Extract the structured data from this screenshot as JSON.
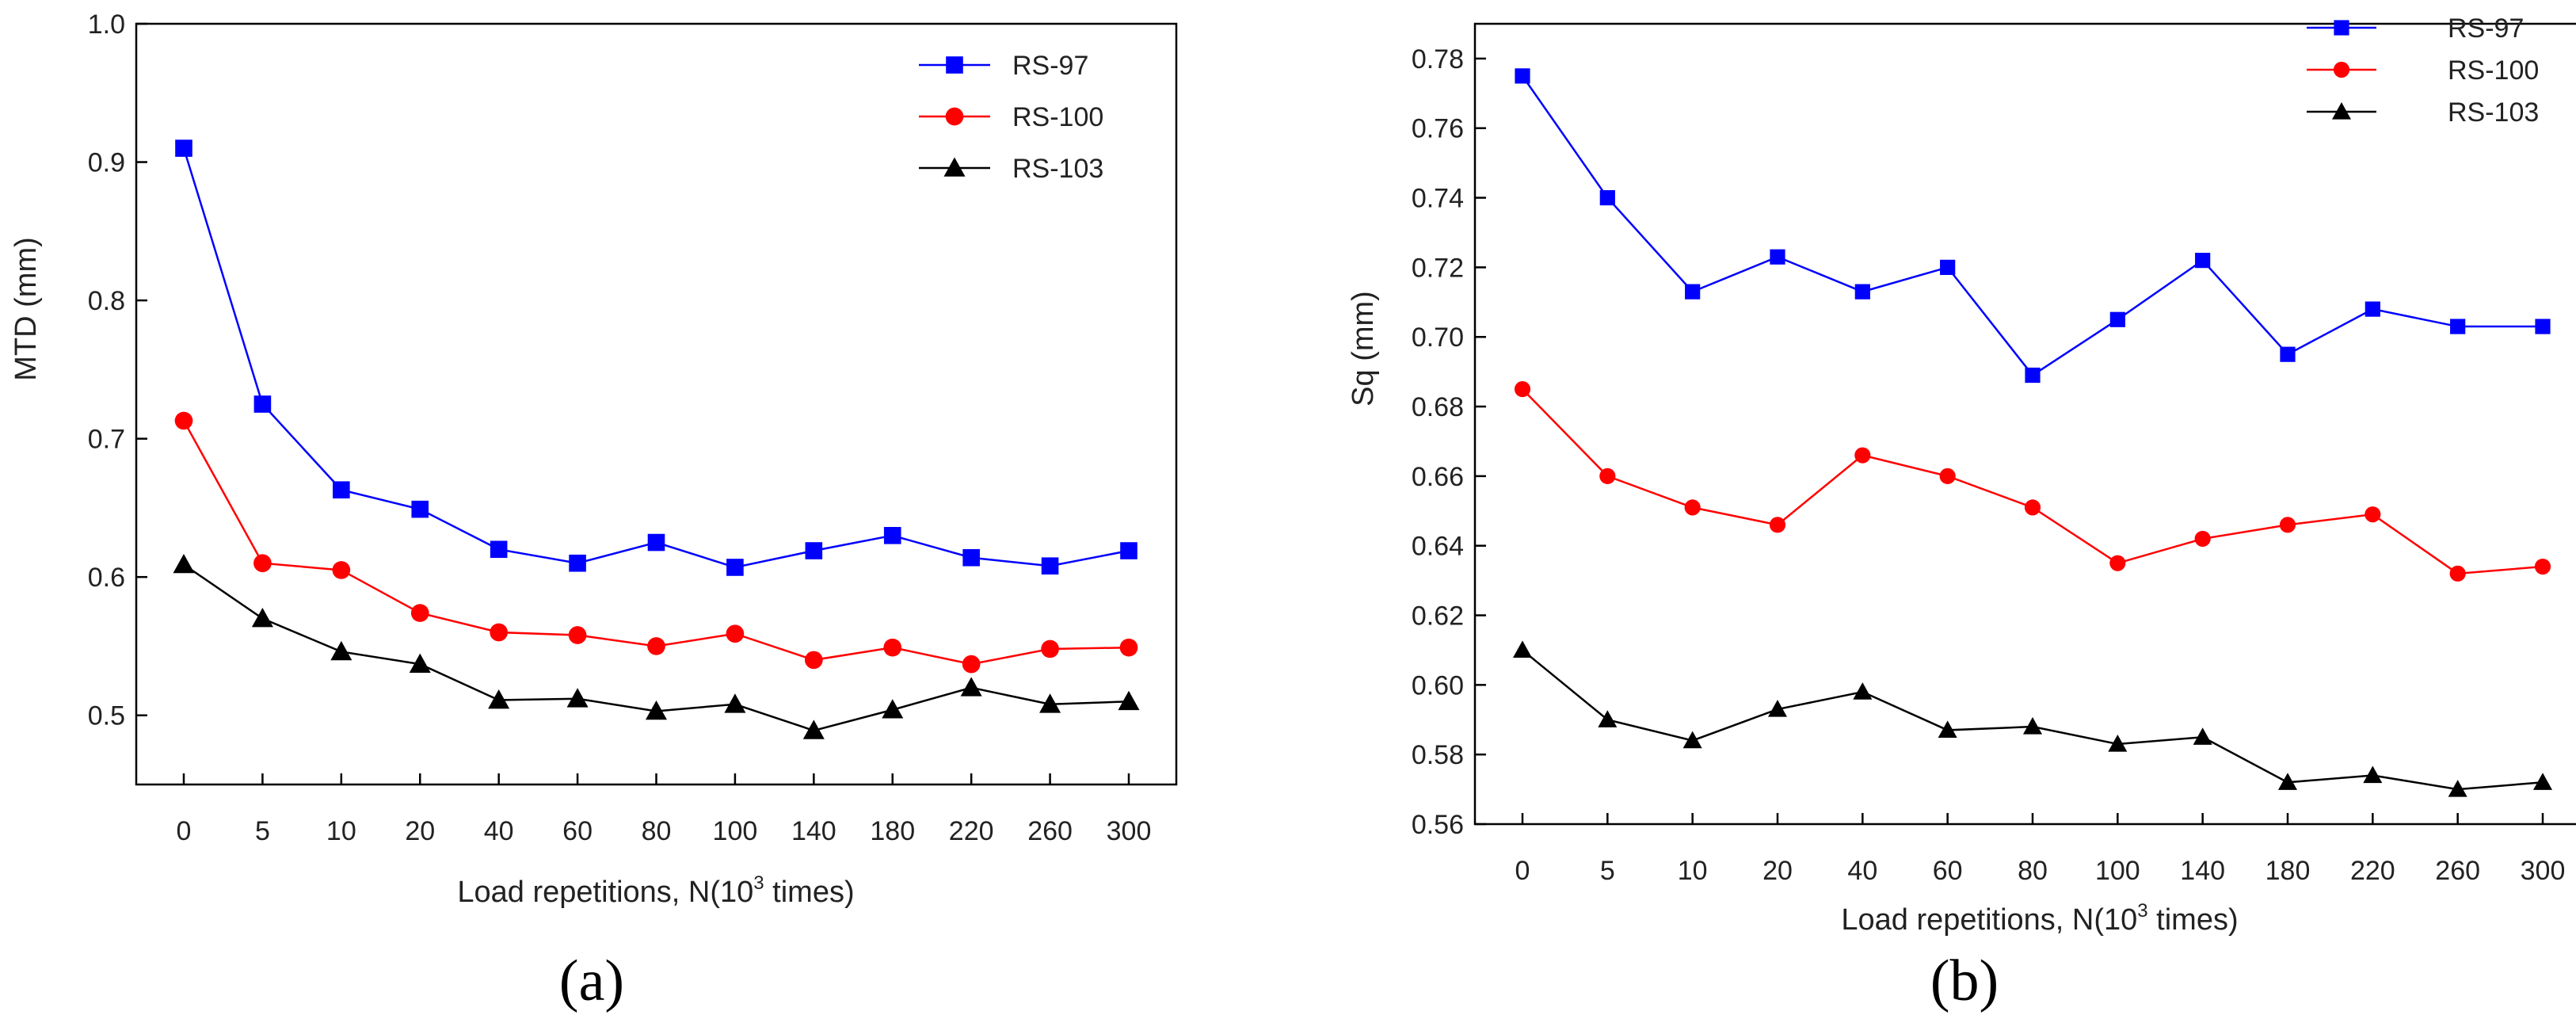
{
  "chart_data": [
    {
      "type": "line",
      "panel_label": "(a)",
      "categories": [
        "0",
        "5",
        "10",
        "20",
        "40",
        "60",
        "80",
        "100",
        "140",
        "180",
        "220",
        "260",
        "300"
      ],
      "xlabel_main": "Load repetitions, N(10",
      "xlabel_sup": "3",
      "xlabel_tail": " times)",
      "ylabel": "MTD (mm)",
      "ylim": [
        0.45,
        1.0
      ],
      "yticks": [
        0.5,
        0.6,
        0.7,
        0.8,
        0.9,
        1.0
      ],
      "ytick_labels": [
        "0.5",
        "0.6",
        "0.7",
        "0.8",
        "0.9",
        "1.0"
      ],
      "grid": false,
      "legend_position": "top-right",
      "series": [
        {
          "name": "RS-97",
          "color": "#0000ff",
          "marker": "square",
          "values": [
            0.91,
            0.725,
            0.663,
            0.649,
            0.62,
            0.61,
            0.625,
            0.607,
            0.619,
            0.63,
            0.614,
            0.608,
            0.619
          ]
        },
        {
          "name": "RS-100",
          "color": "#ff0000",
          "marker": "circle",
          "values": [
            0.713,
            0.61,
            0.605,
            0.574,
            0.56,
            0.558,
            0.55,
            0.559,
            0.54,
            0.549,
            0.537,
            0.548,
            0.549
          ]
        },
        {
          "name": "RS-103",
          "color": "#000000",
          "marker": "triangle",
          "values": [
            0.609,
            0.57,
            0.546,
            0.537,
            0.511,
            0.512,
            0.503,
            0.508,
            0.489,
            0.504,
            0.52,
            0.508,
            0.51
          ]
        }
      ]
    },
    {
      "type": "line",
      "panel_label": "(b)",
      "categories": [
        "0",
        "5",
        "10",
        "20",
        "40",
        "60",
        "80",
        "100",
        "140",
        "180",
        "220",
        "260",
        "300"
      ],
      "xlabel_main": "Load repetitions, N(10",
      "xlabel_sup": "3",
      "xlabel_tail": " times)",
      "ylabel": "Sq (mm)",
      "ylim": [
        0.56,
        0.79
      ],
      "yticks": [
        0.56,
        0.58,
        0.6,
        0.62,
        0.64,
        0.66,
        0.68,
        0.7,
        0.72,
        0.74,
        0.76,
        0.78
      ],
      "ytick_labels": [
        "0.56",
        "0.58",
        "0.60",
        "0.62",
        "0.64",
        "0.66",
        "0.68",
        "0.70",
        "0.72",
        "0.74",
        "0.76",
        "0.78"
      ],
      "grid": false,
      "legend_position": "top-right",
      "series": [
        {
          "name": "RS-97",
          "color": "#0000ff",
          "marker": "square",
          "values": [
            0.775,
            0.74,
            0.713,
            0.723,
            0.713,
            0.72,
            0.689,
            0.705,
            0.722,
            0.695,
            0.708,
            0.703,
            0.703
          ]
        },
        {
          "name": "RS-100",
          "color": "#ff0000",
          "marker": "circle",
          "values": [
            0.685,
            0.66,
            0.651,
            0.646,
            0.666,
            0.66,
            0.651,
            0.635,
            0.642,
            0.646,
            0.649,
            0.632,
            0.634
          ]
        },
        {
          "name": "RS-103",
          "color": "#000000",
          "marker": "triangle",
          "values": [
            0.61,
            0.59,
            0.584,
            0.593,
            0.598,
            0.587,
            0.588,
            0.583,
            0.585,
            0.572,
            0.574,
            0.57,
            0.572
          ]
        }
      ]
    }
  ]
}
